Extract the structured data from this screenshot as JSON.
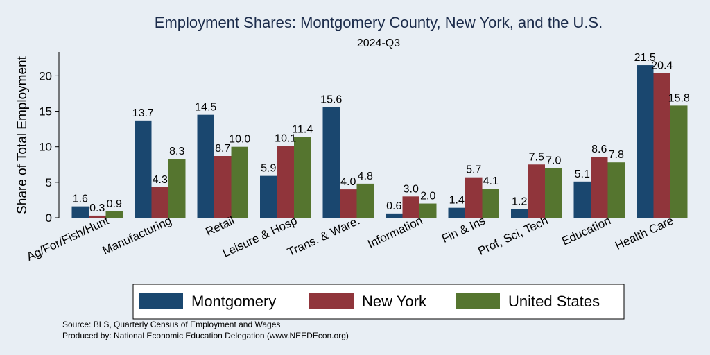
{
  "chart_data": {
    "type": "bar",
    "title": "Employment Shares: Montgomery County, New York, and the U.S.",
    "subtitle": "2024-Q3",
    "ylabel": "Share of Total Employment",
    "xlabel": "",
    "ylim": [
      0,
      23
    ],
    "yticks": [
      0,
      5,
      10,
      15,
      20
    ],
    "grid": false,
    "legend_position": "bottom",
    "categories": [
      "Ag/For/Fish/Hunt",
      "Manufacturing",
      "Retail",
      "Leisure & Hosp",
      "Trans. & Ware.",
      "Information",
      "Fin & Ins",
      "Prof, Sci, Tech",
      "Education",
      "Health Care"
    ],
    "series": [
      {
        "name": "Montgomery",
        "color": "#1a476f",
        "values": [
          1.6,
          13.7,
          14.5,
          5.9,
          15.6,
          0.6,
          1.4,
          1.2,
          5.1,
          21.5
        ]
      },
      {
        "name": "New York",
        "color": "#90353b",
        "values": [
          0.3,
          4.3,
          8.7,
          10.1,
          4.0,
          3.0,
          5.7,
          7.5,
          8.6,
          20.4
        ]
      },
      {
        "name": "United States",
        "color": "#55752f",
        "values": [
          0.9,
          8.3,
          10.0,
          11.4,
          4.8,
          2.0,
          4.1,
          7.0,
          7.8,
          15.8
        ]
      }
    ],
    "notes": [
      "Source: BLS, Quarterly Census of Employment and Wages",
      "Produced by: National Economic Education Delegation (www.NEEDEcon.org)"
    ]
  }
}
